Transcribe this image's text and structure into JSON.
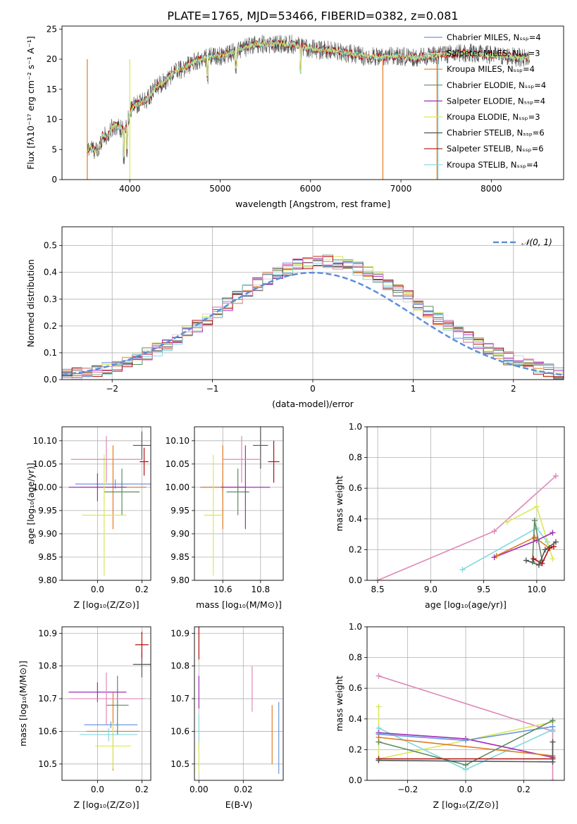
{
  "figure": {
    "title": "PLATE=1765, MJD=53466, FIBERID=0382, z=0.081"
  },
  "model_colors": {
    "Chabrier MILES": "#6b96e0",
    "Salpeter MILES": "#d4d4d4",
    "Kroupa MILES": "#e07b22",
    "Chabrier ELODIE": "#5f8a5f",
    "Salpeter ELODIE": "#a02bb8",
    "Kroupa ELODIE": "#d9e85a",
    "Chabrier STELIB": "#555555",
    "Salpeter STELIB": "#b01010",
    "Kroupa STELIB": "#80d8e0"
  },
  "chart_data": [
    {
      "type": "line",
      "panel": "spectrum",
      "xlabel": "wavelength [Angstrom, rest frame]",
      "ylabel": "Flux [fλ10⁻¹⁷ erg cm⁻² s⁻¹ A⁻¹]",
      "xlim": [
        3250,
        8800
      ],
      "ylim": [
        0,
        25.5
      ],
      "xticks": [
        4000,
        5000,
        6000,
        7000,
        8000
      ],
      "yticks": [
        0,
        5,
        10,
        15,
        20,
        25
      ],
      "legend_position": "right",
      "legend": [
        "Chabrier MILES, Nₛₛₚ=4",
        "Salpeter MILES, Nₛₛₚ=3",
        "Kroupa MILES, Nₛₛₚ=4",
        "Chabrier ELODIE, Nₛₛₚ=4",
        "Salpeter ELODIE, Nₛₛₚ=4",
        "Kroupa ELODIE, Nₛₛₚ=3",
        "Chabrier STELIB, Nₛₛₚ=6",
        "Salpeter STELIB, Nₛₛₚ=6",
        "Kroupa STELIB, Nₛₛₚ=4"
      ],
      "continuum": {
        "x": [
          3530,
          3550,
          3600,
          3650,
          3700,
          3750,
          3800,
          3850,
          3900,
          3950,
          4000,
          4050,
          4100,
          4200,
          4300,
          4400,
          4500,
          4600,
          4700,
          4800,
          4900,
          5000,
          5100,
          5200,
          5300,
          5400,
          5500,
          5600,
          5700,
          5800,
          5900,
          6000,
          6100,
          6200,
          6300,
          6400,
          6500,
          6600,
          6700,
          6800,
          6900,
          7000,
          7100,
          7200,
          7300,
          7400,
          7500,
          7600,
          7700,
          7800,
          7900,
          8000,
          8100,
          8200,
          8300,
          8400
        ],
        "y": [
          4.5,
          5.5,
          5.0,
          4.5,
          7.5,
          7.0,
          8.5,
          9.0,
          8.5,
          8.0,
          11.0,
          12.5,
          12.5,
          13.5,
          15.5,
          16.5,
          18.0,
          18.5,
          19.5,
          20.0,
          20.5,
          20.5,
          21.0,
          21.5,
          22.0,
          22.5,
          22.5,
          22.5,
          22.5,
          22.5,
          22.0,
          21.8,
          21.5,
          21.5,
          21.3,
          21.0,
          20.8,
          20.5,
          20.5,
          20.3,
          20.5,
          20.5,
          20.3,
          20.3,
          20.5,
          20.7,
          20.8,
          21.0,
          21.0,
          21.0,
          20.8,
          20.7,
          20.5,
          20.5,
          20.3,
          20.2
        ]
      }
    },
    {
      "type": "histogram",
      "panel": "residuals",
      "xlabel": "(data-model)/error",
      "ylabel": "Normed distribution",
      "xlim": [
        -2.5,
        2.5
      ],
      "ylim": [
        0,
        0.57
      ],
      "xticks": [
        -2,
        -1,
        0,
        1,
        2
      ],
      "yticks": [
        0.0,
        0.1,
        0.2,
        0.3,
        0.4,
        0.5
      ],
      "grid": true,
      "legend": [
        "𝒩(0, 1)"
      ],
      "legend_position": "top-right"
    },
    {
      "type": "scatter",
      "panel": "age-vs-Z",
      "xlabel": "Z [log₁₀(Z/Z⊙)]",
      "ylabel": "age  [log₁₀(age/yr)]",
      "xlim": [
        -0.16,
        0.24
      ],
      "ylim": [
        9.8,
        10.13
      ],
      "xticks": [
        0.0,
        0.2
      ],
      "yticks": [
        9.8,
        9.85,
        9.9,
        9.95,
        10.0,
        10.05,
        10.1
      ],
      "grid": true,
      "points": [
        {
          "model": "Chabrier MILES",
          "x": 0.08,
          "y": 10.007,
          "xerr": 0.18,
          "yerr": 0.01
        },
        {
          "model": "Kroupa MILES",
          "x": 0.07,
          "y": 10.0,
          "xerr": 0.15,
          "yerr": 0.09
        },
        {
          "model": "Chabrier ELODIE",
          "x": 0.11,
          "y": 9.99,
          "xerr": 0.08,
          "yerr": 0.05
        },
        {
          "model": "Salpeter ELODIE",
          "x": 0.0,
          "y": 10.0,
          "xerr": 0.13,
          "yerr": 0.03
        },
        {
          "model": "Kroupa ELODIE",
          "x": 0.03,
          "y": 9.94,
          "xerr": 0.1,
          "yerr": 0.13
        },
        {
          "model": "Chabrier STELIB",
          "x": 0.2,
          "y": 10.09,
          "xerr": 0.04,
          "yerr": 0.03
        },
        {
          "model": "Salpeter STELIB",
          "x": 0.21,
          "y": 10.055,
          "xerr": 0.02,
          "yerr": 0.03
        },
        {
          "model": "pink",
          "x": 0.04,
          "y": 10.06,
          "xerr": 0.16,
          "yerr": 0.05
        }
      ]
    },
    {
      "type": "scatter",
      "panel": "age-vs-mass",
      "xlabel": "mass [log₁₀(M/M⊙)]",
      "ylabel": "",
      "xlim": [
        10.45,
        10.92
      ],
      "ylim": [
        9.8,
        10.13
      ],
      "xticks": [
        10.6,
        10.8
      ],
      "yticks": [
        9.8,
        9.85,
        9.9,
        9.95,
        10.0,
        10.05,
        10.1
      ],
      "grid": true,
      "points": [
        {
          "model": "Chabrier MILES",
          "x": 10.6,
          "y": 10.0,
          "xerr": 0.12,
          "yerr": 0.01
        },
        {
          "model": "Kroupa MILES",
          "x": 10.6,
          "y": 10.0,
          "xerr": 0.11,
          "yerr": 0.09
        },
        {
          "model": "Chabrier ELODIE",
          "x": 10.68,
          "y": 9.99,
          "xerr": 0.06,
          "yerr": 0.05
        },
        {
          "model": "Salpeter ELODIE",
          "x": 10.72,
          "y": 10.0,
          "xerr": 0.13,
          "yerr": 0.09
        },
        {
          "model": "Kroupa ELODIE",
          "x": 10.55,
          "y": 9.94,
          "xerr": 0.05,
          "yerr": 0.13
        },
        {
          "model": "Chabrier STELIB",
          "x": 10.8,
          "y": 10.09,
          "xerr": 0.04,
          "yerr": 0.05
        },
        {
          "model": "Salpeter STELIB",
          "x": 10.87,
          "y": 10.055,
          "xerr": 0.03,
          "yerr": 0.045
        },
        {
          "model": "pink",
          "x": 10.7,
          "y": 10.06,
          "xerr": 0.1,
          "yerr": 0.05
        }
      ]
    },
    {
      "type": "line",
      "panel": "weight-vs-age",
      "xlabel": "age  [log₁₀(age/yr)]",
      "ylabel": "mass weight",
      "xlim": [
        8.4,
        10.26
      ],
      "ylim": [
        0,
        1
      ],
      "xticks": [
        8.5,
        9.0,
        9.5,
        10.0
      ],
      "yticks": [
        0.0,
        0.2,
        0.4,
        0.6,
        0.8,
        1.0
      ],
      "grid": true,
      "series": [
        {
          "model": "pink",
          "x": [
            8.5,
            9.6,
            10.18
          ],
          "y": [
            0.0,
            0.32,
            0.68
          ]
        },
        {
          "model": "Kroupa STELIB",
          "x": [
            9.3,
            10.0,
            10.1
          ],
          "y": [
            0.07,
            0.34,
            0.25
          ]
        },
        {
          "model": "Kroupa ELODIE",
          "x": [
            9.72,
            10.0,
            10.15
          ],
          "y": [
            0.38,
            0.48,
            0.14
          ]
        },
        {
          "model": "Salpeter ELODIE",
          "x": [
            9.6,
            10.0,
            10.15
          ],
          "y": [
            0.15,
            0.26,
            0.31
          ]
        },
        {
          "model": "Kroupa MILES",
          "x": [
            9.62,
            9.98,
            10.12
          ],
          "y": [
            0.16,
            0.28,
            0.21
          ]
        },
        {
          "model": "Chabrier ELODIE",
          "x": [
            9.96,
            9.98,
            10.05
          ],
          "y": [
            0.12,
            0.39,
            0.13
          ]
        },
        {
          "model": "Salpeter STELIB",
          "x": [
            9.97,
            10.05,
            10.12,
            10.16
          ],
          "y": [
            0.14,
            0.11,
            0.21,
            0.22
          ]
        },
        {
          "model": "Chabrier STELIB",
          "x": [
            9.9,
            10.02,
            10.08,
            10.18
          ],
          "y": [
            0.13,
            0.1,
            0.2,
            0.25
          ]
        }
      ]
    },
    {
      "type": "scatter",
      "panel": "mass-vs-Z",
      "xlabel": "Z [log₁₀(Z/Z⊙)]",
      "ylabel": "mass [log₁₀(M/M⊙)]",
      "xlim": [
        -0.16,
        0.24
      ],
      "ylim": [
        10.45,
        10.92
      ],
      "xticks": [
        0.0,
        0.2
      ],
      "yticks": [
        10.5,
        10.6,
        10.7,
        10.8,
        10.9
      ],
      "grid": true,
      "points": [
        {
          "model": "Chabrier MILES",
          "x": 0.06,
          "y": 10.62,
          "xerr": 0.12,
          "yerr": 0.01
        },
        {
          "model": "Kroupa MILES",
          "x": 0.07,
          "y": 10.6,
          "xerr": 0.12,
          "yerr": 0.12
        },
        {
          "model": "Chabrier ELODIE",
          "x": 0.09,
          "y": 10.68,
          "xerr": 0.05,
          "yerr": 0.09
        },
        {
          "model": "Salpeter ELODIE",
          "x": 0.0,
          "y": 10.72,
          "xerr": 0.13,
          "yerr": 0.03
        },
        {
          "model": "Kroupa ELODIE",
          "x": 0.07,
          "y": 10.555,
          "xerr": 0.08,
          "yerr": 0.07
        },
        {
          "model": "Chabrier STELIB",
          "x": 0.2,
          "y": 10.805,
          "xerr": 0.04,
          "yerr": 0.04
        },
        {
          "model": "Salpeter STELIB",
          "x": 0.2,
          "y": 10.865,
          "xerr": 0.03,
          "yerr": 0.04
        },
        {
          "model": "Kroupa STELIB",
          "x": 0.05,
          "y": 10.59,
          "xerr": 0.13,
          "yerr": 0.02
        },
        {
          "model": "pink",
          "x": 0.04,
          "y": 10.7,
          "xerr": 0.17,
          "yerr": 0.08
        }
      ]
    },
    {
      "type": "scatter",
      "panel": "mass-vs-EBV",
      "xlabel": "E(B-V)",
      "ylabel": "",
      "xlim": [
        -0.002,
        0.038
      ],
      "ylim": [
        10.45,
        10.92
      ],
      "xticks": [
        0.0,
        0.02
      ],
      "yticks": [
        10.5,
        10.6,
        10.7,
        10.8,
        10.9
      ],
      "grid": true,
      "points": [
        {
          "model": "Salpeter STELIB",
          "x": 0.0,
          "y": 10.87,
          "xerr": 0.0,
          "yerr": 0.05
        },
        {
          "model": "Salpeter ELODIE",
          "x": 0.0,
          "y": 10.72,
          "xerr": 0.0,
          "yerr": 0.05
        },
        {
          "model": "Kroupa STELIB",
          "x": 0.0,
          "y": 10.6,
          "xerr": 0.0,
          "yerr": 0.05
        },
        {
          "model": "Kroupa ELODIE",
          "x": 0.0,
          "y": 10.52,
          "xerr": 0.0,
          "yerr": 0.05
        },
        {
          "model": "pink",
          "x": 0.024,
          "y": 10.73,
          "xerr": 0.0,
          "yerr": 0.07
        },
        {
          "model": "Kroupa MILES",
          "x": 0.033,
          "y": 10.59,
          "xerr": 0.0,
          "yerr": 0.09
        },
        {
          "model": "Chabrier MILES",
          "x": 0.036,
          "y": 10.58,
          "xerr": 0.0,
          "yerr": 0.11
        }
      ]
    },
    {
      "type": "line",
      "panel": "weight-vs-Z",
      "xlabel": "Z [log₁₀(Z/Z⊙)]",
      "ylabel": "mass weight",
      "xlim": [
        -0.34,
        0.34
      ],
      "ylim": [
        0,
        1
      ],
      "xticks": [
        -0.2,
        0.0,
        0.2
      ],
      "yticks": [
        0.0,
        0.2,
        0.4,
        0.6,
        0.8,
        1.0
      ],
      "grid": true,
      "series": [
        {
          "model": "pink",
          "x": [
            -0.3,
            0.3,
            0.3
          ],
          "y": [
            0.68,
            0.32,
            0.0
          ]
        },
        {
          "model": "Kroupa ELODIE",
          "x": [
            -0.3,
            -0.3,
            0.3
          ],
          "y": [
            0.48,
            0.14,
            0.38
          ]
        },
        {
          "model": "Kroupa STELIB",
          "x": [
            -0.3,
            0.0,
            0.3
          ],
          "y": [
            0.34,
            0.07,
            0.33
          ]
        },
        {
          "model": "Salpeter ELODIE",
          "x": [
            -0.3,
            0.0,
            0.3
          ],
          "y": [
            0.31,
            0.27,
            0.15
          ]
        },
        {
          "model": "Chabrier MILES",
          "x": [
            -0.3,
            0.0,
            0.3
          ],
          "y": [
            0.3,
            0.26,
            0.35
          ]
        },
        {
          "model": "Kroupa MILES",
          "x": [
            -0.3,
            0.3
          ],
          "y": [
            0.28,
            0.16
          ]
        },
        {
          "model": "Chabrier ELODIE",
          "x": [
            -0.3,
            0.0,
            0.3
          ],
          "y": [
            0.25,
            0.1,
            0.39
          ]
        },
        {
          "model": "Salpeter STELIB",
          "x": [
            -0.3,
            0.3
          ],
          "y": [
            0.14,
            0.14
          ]
        },
        {
          "model": "Chabrier STELIB",
          "x": [
            -0.3,
            0.3,
            0.3
          ],
          "y": [
            0.13,
            0.12,
            0.25
          ]
        }
      ]
    }
  ]
}
